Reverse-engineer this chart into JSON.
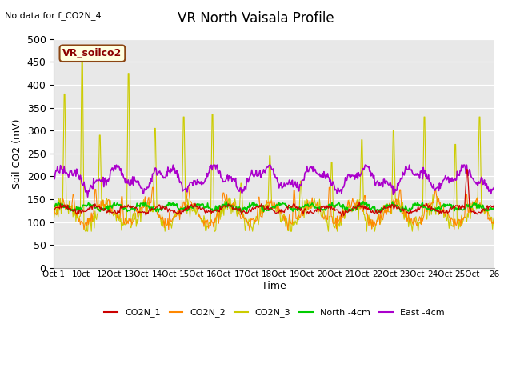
{
  "title": "VR North Vaisala Profile",
  "no_data_label": "No data for f_CO2N_4",
  "box_label": "VR_soilco2",
  "ylabel": "Soil CO2 (mV)",
  "xlabel": "Time",
  "ylim": [
    0,
    500
  ],
  "yticks": [
    0,
    50,
    100,
    150,
    200,
    250,
    300,
    350,
    400,
    450,
    500
  ],
  "xtick_positions": [
    0,
    1,
    2,
    3,
    4,
    5,
    6,
    7,
    8,
    9,
    10,
    11,
    12,
    13,
    14,
    15,
    16
  ],
  "xtick_labels": [
    "Oct 1",
    "10ct",
    "12Oct",
    "13Oct",
    "14Oct",
    "15Oct",
    "16Oct",
    "17Oct",
    "18Oct",
    "19Oct",
    "20Oct",
    "21Oct",
    "22Oct",
    "23Oct",
    "24Oct",
    "25Oct",
    "26"
  ],
  "colors": {
    "CO2N_1": "#cc0000",
    "CO2N_2": "#ff8800",
    "CO2N_3": "#cccc00",
    "North_4cm": "#00cc00",
    "East_4cm": "#aa00cc"
  },
  "bg_color": "#e8e8e8",
  "n_points": 600,
  "seed": 42
}
